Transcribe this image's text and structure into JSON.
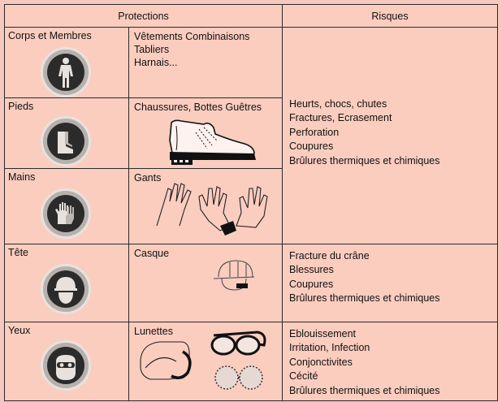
{
  "headers": {
    "protections": "Protections",
    "risques": "Risques"
  },
  "rows": [
    {
      "zone": "Corps et Membres",
      "protection": [
        "Vêtements Combinaisons Tabliers",
        "Harnais..."
      ]
    },
    {
      "zone": "Pieds",
      "protection": [
        "Chaussures, Bottes Guêtres"
      ]
    },
    {
      "zone": "Mains",
      "protection": [
        "Gants"
      ]
    },
    {
      "zone": "Tête",
      "protection": [
        "Casque"
      ]
    },
    {
      "zone": "Yeux",
      "protection": [
        "Lunettes"
      ]
    }
  ],
  "risks": {
    "group1": [
      "Heurts, chocs, chutes",
      "Fractures, Ecrasement",
      "Perforation",
      "Coupures",
      "Brûlures thermiques et chimiques"
    ],
    "tete": [
      "Fracture du crâne",
      "Blessures",
      "Coupures",
      "Brûlures thermiques et chimiques"
    ],
    "yeux": [
      "Eblouissement",
      "Irritation, Infection",
      "Conjonctivites",
      "Cécité",
      "Brûlures thermiques et chimiques"
    ]
  },
  "icons": [
    "body-protection-icon",
    "boots-icon",
    "gloves-icon",
    "helmet-icon",
    "goggles-icon"
  ],
  "colors": {
    "background": "#fbcdbf",
    "border": "#2a2a2a",
    "icon": "#2b2b2b"
  }
}
